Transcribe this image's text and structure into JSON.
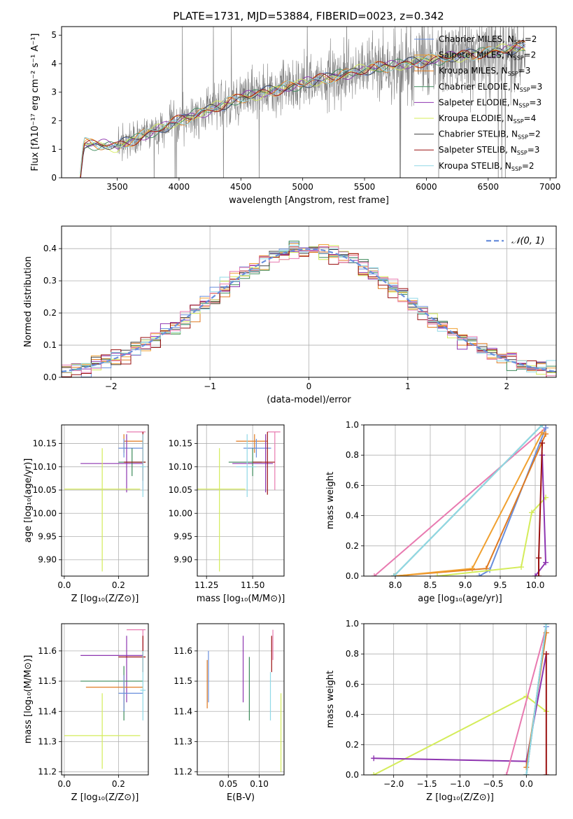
{
  "figure": {
    "title": "PLATE=1731, MJD=53884, FIBERID=0023, z=0.342",
    "model_colors": {
      "Chabrier MILES": "#6a8fdc",
      "Salpeter MILES": "#f0a030",
      "Kroupa MILES": "#e07a20",
      "Chabrier ELODIE": "#3c8a5a",
      "Salpeter ELODIE": "#8e35b0",
      "Kroupa ELODIE": "#d4ec5a",
      "Chabrier STELIB": "#404040",
      "Salpeter STELIB": "#9a1010",
      "Kroupa STELIB": "#90d8e6",
      "extra_pink": "#e87ab0"
    }
  },
  "chart_data": [
    {
      "id": "spectrum",
      "type": "line",
      "title": "PLATE=1731, MJD=53884, FIBERID=0023, z=0.342",
      "xlabel": "wavelength [Angstrom, rest frame]",
      "ylabel": "Flux [fλ10⁻¹⁷ erg cm⁻² s⁻¹ A⁻¹]",
      "xlim": [
        3050,
        7050
      ],
      "ylim": [
        0,
        5.3
      ],
      "xticks": [
        3500,
        4000,
        4500,
        5000,
        5500,
        6000,
        6500,
        7000
      ],
      "yticks": [
        0,
        1,
        2,
        3,
        4,
        5
      ],
      "data_observed": {
        "name": "data",
        "color": "#808080",
        "x_range": [
          3200,
          6800
        ],
        "description_points": [
          [
            3200,
            0
          ],
          [
            3230,
            1.2
          ],
          [
            3500,
            1.1
          ],
          [
            4000,
            2.0
          ],
          [
            4500,
            2.8
          ],
          [
            5000,
            3.3
          ],
          [
            5500,
            3.8
          ],
          [
            6000,
            4.1
          ],
          [
            6500,
            4.4
          ],
          [
            6800,
            4.6
          ]
        ]
      },
      "legend": [
        {
          "name": "Chabrier MILES, N",
          "sub": "SSP",
          "value": "=2",
          "color": "#6a8fdc"
        },
        {
          "name": "Salpeter MILES, N",
          "sub": "SSP",
          "value": "=2",
          "color": "#f0a030"
        },
        {
          "name": "Kroupa MILES, N",
          "sub": "SSP",
          "value": "=3",
          "color": "#e07a20"
        },
        {
          "name": "Chabrier ELODIE, N",
          "sub": "SSP",
          "value": "=3",
          "color": "#3c8a5a"
        },
        {
          "name": "Salpeter ELODIE, N",
          "sub": "SSP",
          "value": "=3",
          "color": "#8e35b0"
        },
        {
          "name": "Kroupa ELODIE, N",
          "sub": "SSP",
          "value": "=4",
          "color": "#d4ec5a"
        },
        {
          "name": "Chabrier STELIB, N",
          "sub": "SSP",
          "value": "=2",
          "color": "#404040"
        },
        {
          "name": "Salpeter STELIB, N",
          "sub": "SSP",
          "value": "=3",
          "color": "#9a1010"
        },
        {
          "name": "Kroupa STELIB, N",
          "sub": "SSP",
          "value": "=2",
          "color": "#90d8e6"
        }
      ],
      "legend_loc": "upper right"
    },
    {
      "id": "residuals",
      "type": "line",
      "xlabel": "(data-model)/error",
      "ylabel": "Normed distribution",
      "xlim": [
        -2.5,
        2.5
      ],
      "ylim": [
        0,
        0.47
      ],
      "xticks": [
        -2,
        -1,
        0,
        1,
        2
      ],
      "yticks": [
        0.0,
        0.1,
        0.2,
        0.3,
        0.4
      ],
      "grid": true,
      "legend": [
        {
          "name": "𝒩(0, 1)",
          "color": "#6a8fdc",
          "style": "dashed"
        }
      ],
      "legend_loc": "upper right",
      "series": [
        {
          "model": "Chabrier MILES",
          "color": "#6a8fdc"
        },
        {
          "model": "Salpeter MILES",
          "color": "#f0a030"
        },
        {
          "model": "Kroupa MILES",
          "color": "#e07a20"
        },
        {
          "model": "Chabrier ELODIE",
          "color": "#3c8a5a"
        },
        {
          "model": "Salpeter ELODIE",
          "color": "#8e35b0"
        },
        {
          "model": "Kroupa ELODIE",
          "color": "#d4ec5a"
        },
        {
          "model": "Chabrier STELIB",
          "color": "#404040"
        },
        {
          "model": "Salpeter STELIB",
          "color": "#9a1010"
        },
        {
          "model": "Kroupa STELIB",
          "color": "#90d8e6"
        },
        {
          "model": "pink",
          "color": "#e87ab0"
        }
      ]
    },
    {
      "id": "age_vs_Z",
      "type": "scatter",
      "xlabel": "Z [log₁₀(Z/Z⊙)]",
      "ylabel": "age  [log₁₀(age/yr)]",
      "xlim": [
        -0.01,
        0.31
      ],
      "ylim": [
        9.865,
        10.19
      ],
      "xticks": [
        0.0,
        0.2
      ],
      "yticks": [
        9.9,
        9.95,
        10.0,
        10.05,
        10.1,
        10.15
      ],
      "grid": true,
      "points": [
        {
          "x": 0.22,
          "y": 10.155,
          "xerr": [
            0.22,
            0.29
          ],
          "yerr": [
            10.13,
            10.17
          ],
          "color": "#e07a20"
        },
        {
          "x": 0.29,
          "y": 10.175,
          "xerr": [
            0.23,
            0.3
          ],
          "yerr": [
            10.05,
            10.175
          ],
          "color": "#e87ab0"
        },
        {
          "x": 0.22,
          "y": 10.14,
          "xerr": [
            0.2,
            0.29
          ],
          "yerr": [
            10.12,
            10.16
          ],
          "color": "#6a8fdc"
        },
        {
          "x": 0.23,
          "y": 10.107,
          "xerr": [
            0.06,
            0.29
          ],
          "yerr": [
            10.045,
            10.17
          ],
          "color": "#8e35b0"
        },
        {
          "x": 0.25,
          "y": 10.11,
          "xerr": [
            0.2,
            0.3
          ],
          "yerr": [
            10.08,
            10.14
          ],
          "color": "#3c8a5a"
        },
        {
          "x": 0.29,
          "y": 10.11,
          "xerr": [
            0.22,
            0.3
          ],
          "yerr": [
            10.07,
            10.175
          ],
          "color": "#9a1010"
        },
        {
          "x": 0.29,
          "y": 10.1,
          "xerr": [
            0.28,
            0.3
          ],
          "yerr": [
            10.035,
            10.17
          ],
          "color": "#90d8e6"
        },
        {
          "x": 0.14,
          "y": 10.052,
          "xerr": [
            0.0,
            0.28
          ],
          "yerr": [
            9.875,
            10.14
          ],
          "color": "#d4ec5a"
        }
      ]
    },
    {
      "id": "age_vs_mass",
      "type": "scatter",
      "xlabel": "mass [log₁₀(M/M⊙)]",
      "xlim": [
        11.2,
        11.67
      ],
      "ylim": [
        9.865,
        10.19
      ],
      "xticks": [
        11.25,
        11.5
      ],
      "yticks": [
        9.9,
        9.95,
        10.0,
        10.05,
        10.1,
        10.15
      ],
      "grid": true,
      "points": [
        {
          "x": 11.51,
          "y": 10.155,
          "xerr": [
            11.41,
            11.58
          ],
          "yerr": [
            10.13,
            10.17
          ],
          "color": "#e07a20"
        },
        {
          "x": 11.62,
          "y": 10.175,
          "xerr": [
            11.58,
            11.65
          ],
          "yerr": [
            10.05,
            10.175
          ],
          "color": "#e87ab0"
        },
        {
          "x": 11.52,
          "y": 10.14,
          "xerr": [
            11.45,
            11.6
          ],
          "yerr": [
            10.12,
            10.16
          ],
          "color": "#6a8fdc"
        },
        {
          "x": 11.57,
          "y": 10.107,
          "xerr": [
            11.39,
            11.61
          ],
          "yerr": [
            10.045,
            10.17
          ],
          "color": "#8e35b0"
        },
        {
          "x": 11.5,
          "y": 10.11,
          "xerr": [
            11.37,
            11.55
          ],
          "yerr": [
            10.08,
            10.14
          ],
          "color": "#3c8a5a"
        },
        {
          "x": 11.58,
          "y": 10.11,
          "xerr": [
            11.5,
            11.62
          ],
          "yerr": [
            10.04,
            10.175
          ],
          "color": "#9a1010"
        },
        {
          "x": 11.47,
          "y": 10.1,
          "xerr": [
            11.41,
            11.52
          ],
          "yerr": [
            10.035,
            10.17
          ],
          "color": "#90d8e6"
        },
        {
          "x": 11.32,
          "y": 10.052,
          "xerr": [
            11.2,
            11.46
          ],
          "yerr": [
            9.875,
            10.14
          ],
          "color": "#d4ec5a"
        }
      ]
    },
    {
      "id": "weight_vs_age",
      "type": "line",
      "xlabel": "age  [log₁₀(age/yr)]",
      "ylabel": "mass weight",
      "xlim": [
        7.55,
        10.3
      ],
      "ylim": [
        0.0,
        1.0
      ],
      "xticks": [
        8.0,
        8.5,
        9.0,
        9.5,
        10.0
      ],
      "yticks": [
        0.0,
        0.2,
        0.4,
        0.6,
        0.8,
        1.0
      ],
      "grid": true,
      "series": [
        {
          "color": "#e87ab0",
          "points": [
            [
              7.7,
              0.0
            ],
            [
              10.15,
              0.98
            ]
          ]
        },
        {
          "color": "#6a8fdc",
          "points": [
            [
              9.2,
              0.0
            ],
            [
              9.35,
              0.04
            ],
            [
              10.15,
              0.98
            ]
          ]
        },
        {
          "color": "#e07a20",
          "points": [
            [
              7.98,
              0.0
            ],
            [
              9.3,
              0.05
            ],
            [
              10.15,
              0.94
            ]
          ]
        },
        {
          "color": "#f0a030",
          "points": [
            [
              8.0,
              0.0
            ],
            [
              9.1,
              0.05
            ],
            [
              10.1,
              0.95
            ]
          ]
        },
        {
          "color": "#3c8a5a",
          "points": [
            [
              7.98,
              0.0
            ],
            [
              10.1,
              1.0
            ]
          ]
        },
        {
          "color": "#90d8e6",
          "points": [
            [
              7.98,
              0.0
            ],
            [
              10.1,
              1.0
            ]
          ]
        },
        {
          "color": "#d4ec5a",
          "points": [
            [
              8.6,
              0.0
            ],
            [
              9.8,
              0.06
            ],
            [
              9.95,
              0.42
            ],
            [
              10.15,
              0.52
            ]
          ]
        },
        {
          "color": "#8e35b0",
          "points": [
            [
              10.0,
              0.0
            ],
            [
              10.15,
              0.09
            ],
            [
              10.1,
              0.8
            ]
          ]
        },
        {
          "color": "#9a1010",
          "points": [
            [
              10.05,
              0.0
            ],
            [
              10.05,
              0.12
            ],
            [
              10.1,
              0.88
            ]
          ]
        }
      ]
    },
    {
      "id": "mass_vs_Z",
      "type": "scatter",
      "xlabel": "Z [log₁₀(Z/Z⊙)]",
      "ylabel": "mass [log₁₀(M/M⊙)]",
      "xlim": [
        -0.01,
        0.31
      ],
      "ylim": [
        11.19,
        11.69
      ],
      "xticks": [
        0.0,
        0.2
      ],
      "yticks": [
        11.2,
        11.3,
        11.4,
        11.5,
        11.6
      ],
      "grid": true,
      "points": [
        {
          "x": 0.29,
          "y": 11.67,
          "xerr": [
            0.23,
            0.3
          ],
          "yerr": [
            11.58,
            11.67
          ],
          "color": "#e87ab0"
        },
        {
          "x": 0.23,
          "y": 11.585,
          "xerr": [
            0.06,
            0.29
          ],
          "yerr": [
            11.43,
            11.65
          ],
          "color": "#8e35b0"
        },
        {
          "x": 0.29,
          "y": 11.58,
          "xerr": [
            0.2,
            0.3
          ],
          "yerr": [
            11.53,
            11.65
          ],
          "color": "#9a1010"
        },
        {
          "x": 0.22,
          "y": 11.5,
          "xerr": [
            0.06,
            0.29
          ],
          "yerr": [
            11.37,
            11.55
          ],
          "color": "#3c8a5a"
        },
        {
          "x": 0.22,
          "y": 11.48,
          "xerr": [
            0.08,
            0.29
          ],
          "yerr": [
            11.41,
            11.52
          ],
          "color": "#e07a20"
        },
        {
          "x": 0.22,
          "y": 11.46,
          "xerr": [
            0.2,
            0.29
          ],
          "yerr": [
            11.4,
            11.52
          ],
          "color": "#6a8fdc"
        },
        {
          "x": 0.29,
          "y": 11.47,
          "xerr": [
            0.28,
            0.3
          ],
          "yerr": [
            11.37,
            11.6
          ],
          "color": "#90d8e6"
        },
        {
          "x": 0.14,
          "y": 11.32,
          "xerr": [
            0.0,
            0.28
          ],
          "yerr": [
            11.21,
            11.46
          ],
          "color": "#d4ec5a"
        }
      ]
    },
    {
      "id": "mass_vs_ebv",
      "type": "scatter",
      "xlabel": "E(B-V)",
      "xlim": [
        0.0,
        0.14
      ],
      "ylim": [
        11.19,
        11.69
      ],
      "xticks": [
        0.05,
        0.1
      ],
      "yticks": [
        11.2,
        11.3,
        11.4,
        11.5,
        11.6
      ],
      "grid": true,
      "points": [
        {
          "x": 0.016,
          "y": 11.5,
          "yerr": [
            11.41,
            11.57
          ],
          "color": "#e07a20"
        },
        {
          "x": 0.018,
          "y": 11.52,
          "yerr": [
            11.43,
            11.6
          ],
          "color": "#6a8fdc"
        },
        {
          "x": 0.074,
          "y": 11.55,
          "yerr": [
            11.43,
            11.65
          ],
          "color": "#8e35b0"
        },
        {
          "x": 0.084,
          "y": 11.48,
          "yerr": [
            11.37,
            11.58
          ],
          "color": "#3c8a5a"
        },
        {
          "x": 0.118,
          "y": 11.46,
          "yerr": [
            11.37,
            11.53
          ],
          "color": "#90d8e6"
        },
        {
          "x": 0.12,
          "y": 11.6,
          "yerr": [
            11.53,
            11.65
          ],
          "color": "#9a1010"
        },
        {
          "x": 0.122,
          "y": 11.61,
          "yerr": [
            11.57,
            11.67
          ],
          "color": "#e87ab0"
        },
        {
          "x": 0.135,
          "y": 11.33,
          "yerr": [
            11.2,
            11.46
          ],
          "color": "#d4ec5a"
        }
      ]
    },
    {
      "id": "weight_vs_Z",
      "type": "line",
      "xlabel": "Z [log₁₀(Z/Z⊙)]",
      "ylabel": "mass weight",
      "xlim": [
        -2.45,
        0.45
      ],
      "ylim": [
        0.0,
        1.0
      ],
      "xticks": [
        -2.0,
        -1.5,
        -1.0,
        -0.5,
        0.0
      ],
      "yticks": [
        0.0,
        0.2,
        0.4,
        0.6,
        0.8,
        1.0
      ],
      "grid": true,
      "series": [
        {
          "color": "#d4ec5a",
          "points": [
            [
              -2.3,
              0.0
            ],
            [
              0.0,
              0.52
            ],
            [
              0.3,
              0.42
            ]
          ]
        },
        {
          "color": "#8e35b0",
          "points": [
            [
              -2.3,
              0.11
            ],
            [
              0.0,
              0.09
            ],
            [
              0.3,
              0.8
            ]
          ]
        },
        {
          "color": "#e87ab0",
          "points": [
            [
              -0.3,
              0.0
            ],
            [
              0.3,
              0.98
            ]
          ]
        },
        {
          "color": "#6a8fdc",
          "points": [
            [
              0.0,
              0.0
            ],
            [
              0.3,
              0.98
            ]
          ]
        },
        {
          "color": "#e07a20",
          "points": [
            [
              0.0,
              0.05
            ],
            [
              0.3,
              0.94
            ]
          ]
        },
        {
          "color": "#3c8a5a",
          "points": [
            [
              0.0,
              0.0
            ],
            [
              0.3,
              1.0
            ]
          ]
        },
        {
          "color": "#90d8e6",
          "points": [
            [
              0.0,
              0.0
            ],
            [
              0.3,
              1.0
            ]
          ]
        },
        {
          "color": "#9a1010",
          "points": [
            [
              0.3,
              0.0
            ],
            [
              0.3,
              0.8
            ]
          ]
        }
      ]
    }
  ]
}
